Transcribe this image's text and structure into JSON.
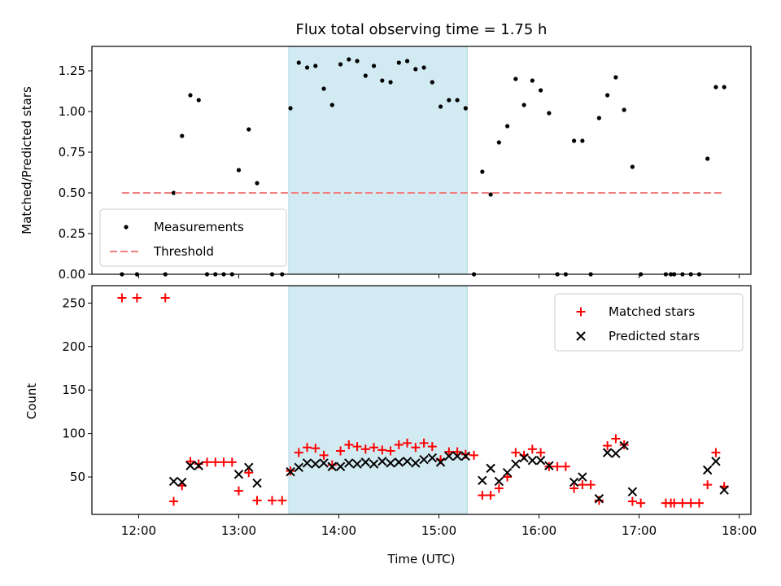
{
  "chart_data": {
    "title": "Flux total observing time = 1.75 h",
    "shaded_interval": {
      "start": "13:30",
      "end": "15:17",
      "color": "#add8e6"
    },
    "xlabel": "Time (UTC)",
    "xlim": [
      "11:32",
      "18:07"
    ],
    "xticks": [
      "12:00",
      "13:00",
      "14:00",
      "15:00",
      "16:00",
      "17:00",
      "18:00"
    ],
    "panels": [
      {
        "type": "scatter",
        "ylabel": "Matched/Predicted stars",
        "ylim": [
          0,
          1.4
        ],
        "yticks": [
          "0.00",
          "0.25",
          "0.50",
          "0.75",
          "1.00",
          "1.25"
        ],
        "legend": {
          "position": "lower-left",
          "entries": [
            "Measurements",
            "Threshold"
          ]
        },
        "series": [
          {
            "name": "Measurements",
            "kind": "points",
            "color": "#000000",
            "points": [
              [
                "11:50",
                0
              ],
              [
                "11:59",
                0
              ],
              [
                "12:16",
                0
              ],
              [
                "12:21",
                0.5
              ],
              [
                "12:26",
                0.85
              ],
              [
                "12:31",
                1.1
              ],
              [
                "12:36",
                1.07
              ],
              [
                "12:41",
                0
              ],
              [
                "12:46",
                0
              ],
              [
                "12:51",
                0
              ],
              [
                "12:56",
                0
              ],
              [
                "13:00",
                0.64
              ],
              [
                "13:06",
                0.89
              ],
              [
                "13:11",
                0.56
              ],
              [
                "13:20",
                0
              ],
              [
                "13:26",
                0
              ],
              [
                "13:31",
                1.02
              ],
              [
                "13:36",
                1.3
              ],
              [
                "13:41",
                1.27
              ],
              [
                "13:46",
                1.28
              ],
              [
                "13:51",
                1.14
              ],
              [
                "13:56",
                1.04
              ],
              [
                "14:01",
                1.29
              ],
              [
                "14:06",
                1.32
              ],
              [
                "14:11",
                1.31
              ],
              [
                "14:16",
                1.22
              ],
              [
                "14:21",
                1.28
              ],
              [
                "14:26",
                1.19
              ],
              [
                "14:31",
                1.18
              ],
              [
                "14:36",
                1.3
              ],
              [
                "14:41",
                1.31
              ],
              [
                "14:46",
                1.26
              ],
              [
                "14:51",
                1.27
              ],
              [
                "14:56",
                1.18
              ],
              [
                "15:01",
                1.03
              ],
              [
                "15:06",
                1.07
              ],
              [
                "15:11",
                1.07
              ],
              [
                "15:16",
                1.02
              ],
              [
                "15:21",
                0
              ],
              [
                "15:26",
                0.63
              ],
              [
                "15:31",
                0.49
              ],
              [
                "15:36",
                0.81
              ],
              [
                "15:41",
                0.91
              ],
              [
                "15:46",
                1.2
              ],
              [
                "15:51",
                1.04
              ],
              [
                "15:56",
                1.19
              ],
              [
                "16:01",
                1.13
              ],
              [
                "16:06",
                0.99
              ],
              [
                "16:11",
                0
              ],
              [
                "16:16",
                0
              ],
              [
                "16:21",
                0.82
              ],
              [
                "16:26",
                0.82
              ],
              [
                "16:31",
                0
              ],
              [
                "16:36",
                0.96
              ],
              [
                "16:41",
                1.1
              ],
              [
                "16:46",
                1.21
              ],
              [
                "16:51",
                1.01
              ],
              [
                "16:56",
                0.66
              ],
              [
                "17:01",
                0
              ],
              [
                "17:16",
                0
              ],
              [
                "17:19",
                0
              ],
              [
                "17:21",
                0
              ],
              [
                "17:26",
                0
              ],
              [
                "17:31",
                0
              ],
              [
                "17:36",
                0
              ],
              [
                "17:41",
                0.71
              ],
              [
                "17:46",
                1.15
              ],
              [
                "17:51",
                1.15
              ]
            ]
          },
          {
            "name": "Threshold",
            "kind": "line",
            "style": "dashed",
            "color": "#f08080",
            "points": [
              [
                "11:50",
                0.5
              ],
              [
                "17:51",
                0.5
              ]
            ]
          }
        ]
      },
      {
        "type": "scatter",
        "ylabel": "Count",
        "ylim": [
          7,
          270
        ],
        "yticks": [
          "50",
          "100",
          "150",
          "200",
          "250"
        ],
        "legend": {
          "position": "upper-right",
          "entries": [
            "Matched stars",
            "Predicted stars"
          ]
        },
        "series": [
          {
            "name": "Matched stars",
            "marker": "+",
            "color": "#ff0000",
            "points": [
              [
                "11:50",
                256
              ],
              [
                "11:59",
                256
              ],
              [
                "12:16",
                256
              ],
              [
                "12:21",
                22
              ],
              [
                "12:26",
                40
              ],
              [
                "12:31",
                68
              ],
              [
                "12:36",
                65
              ],
              [
                "12:41",
                67
              ],
              [
                "12:46",
                67
              ],
              [
                "12:51",
                67
              ],
              [
                "12:56",
                67
              ],
              [
                "13:00",
                34
              ],
              [
                "13:06",
                55
              ],
              [
                "13:11",
                23
              ],
              [
                "13:20",
                23
              ],
              [
                "13:26",
                23
              ],
              [
                "13:31",
                57
              ],
              [
                "13:36",
                78
              ],
              [
                "13:41",
                84
              ],
              [
                "13:46",
                83
              ],
              [
                "13:51",
                75
              ],
              [
                "13:56",
                64
              ],
              [
                "14:01",
                80
              ],
              [
                "14:06",
                87
              ],
              [
                "14:11",
                85
              ],
              [
                "14:16",
                82
              ],
              [
                "14:21",
                84
              ],
              [
                "14:26",
                81
              ],
              [
                "14:31",
                80
              ],
              [
                "14:36",
                87
              ],
              [
                "14:41",
                89
              ],
              [
                "14:46",
                84
              ],
              [
                "14:51",
                89
              ],
              [
                "14:56",
                85
              ],
              [
                "15:01",
                70
              ],
              [
                "15:06",
                79
              ],
              [
                "15:11",
                79
              ],
              [
                "15:16",
                76
              ],
              [
                "15:21",
                75
              ],
              [
                "15:26",
                29
              ],
              [
                "15:31",
                29
              ],
              [
                "15:36",
                37
              ],
              [
                "15:41",
                50
              ],
              [
                "15:46",
                78
              ],
              [
                "15:51",
                75
              ],
              [
                "15:56",
                82
              ],
              [
                "16:01",
                78
              ],
              [
                "16:06",
                62
              ],
              [
                "16:11",
                62
              ],
              [
                "16:16",
                62
              ],
              [
                "16:21",
                37
              ],
              [
                "16:26",
                41
              ],
              [
                "16:31",
                41
              ],
              [
                "16:36",
                23
              ],
              [
                "16:41",
                86
              ],
              [
                "16:46",
                94
              ],
              [
                "16:51",
                87
              ],
              [
                "16:56",
                22
              ],
              [
                "17:01",
                20
              ],
              [
                "17:16",
                20
              ],
              [
                "17:19",
                20
              ],
              [
                "17:21",
                20
              ],
              [
                "17:26",
                20
              ],
              [
                "17:31",
                20
              ],
              [
                "17:36",
                20
              ],
              [
                "17:41",
                41
              ],
              [
                "17:46",
                78
              ],
              [
                "17:51",
                39
              ]
            ]
          },
          {
            "name": "Predicted stars",
            "marker": "x",
            "color": "#000000",
            "points": [
              [
                "12:21",
                45
              ],
              [
                "12:26",
                44
              ],
              [
                "12:31",
                63
              ],
              [
                "12:36",
                63
              ],
              [
                "13:00",
                53
              ],
              [
                "13:06",
                61
              ],
              [
                "13:11",
                43
              ],
              [
                "13:31",
                56
              ],
              [
                "13:36",
                61
              ],
              [
                "13:41",
                66
              ],
              [
                "13:46",
                65
              ],
              [
                "13:51",
                66
              ],
              [
                "13:56",
                62
              ],
              [
                "14:01",
                62
              ],
              [
                "14:06",
                66
              ],
              [
                "14:11",
                65
              ],
              [
                "14:16",
                67
              ],
              [
                "14:21",
                65
              ],
              [
                "14:26",
                68
              ],
              [
                "14:31",
                66
              ],
              [
                "14:36",
                67
              ],
              [
                "14:41",
                68
              ],
              [
                "14:46",
                66
              ],
              [
                "14:51",
                70
              ],
              [
                "14:56",
                72
              ],
              [
                "15:01",
                67
              ],
              [
                "15:06",
                74
              ],
              [
                "15:11",
                74
              ],
              [
                "15:16",
                74
              ],
              [
                "15:26",
                46
              ],
              [
                "15:31",
                60
              ],
              [
                "15:36",
                45
              ],
              [
                "15:41",
                55
              ],
              [
                "15:46",
                65
              ],
              [
                "15:51",
                72
              ],
              [
                "15:56",
                69
              ],
              [
                "16:01",
                69
              ],
              [
                "16:06",
                63
              ],
              [
                "16:21",
                44
              ],
              [
                "16:26",
                50
              ],
              [
                "16:36",
                25
              ],
              [
                "16:41",
                78
              ],
              [
                "16:46",
                77
              ],
              [
                "16:51",
                86
              ],
              [
                "16:56",
                33
              ],
              [
                "17:41",
                58
              ],
              [
                "17:46",
                68
              ],
              [
                "17:51",
                35
              ]
            ]
          }
        ]
      }
    ]
  }
}
